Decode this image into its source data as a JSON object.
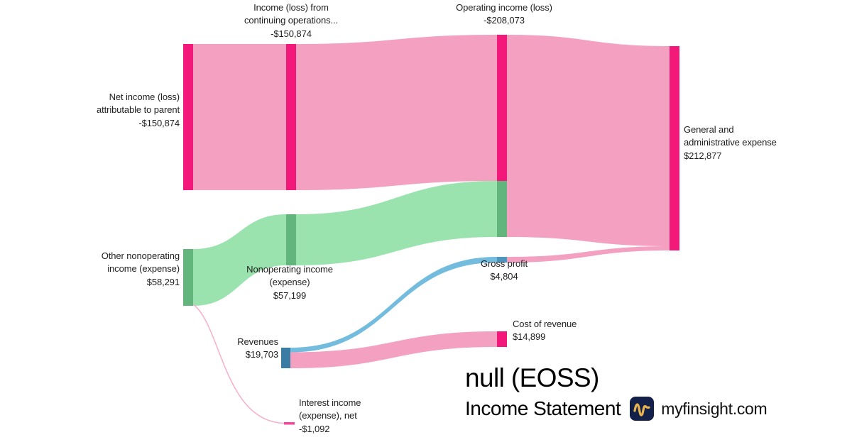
{
  "branding": {
    "title": "null (EOSS)",
    "subtitle": "Income Statement",
    "site": "myfinsight.com",
    "logo_icon": "pulse-waveform-icon",
    "logo_bg": "#13204A",
    "logo_fg": "#E9B44C"
  },
  "colors": {
    "background": "#FFFFFF",
    "label_text": "#1E1E1E",
    "node_pink": "#F2197B",
    "flow_pink": "#F3A0C1",
    "node_green": "#63B57E",
    "flow_green": "#9AE3AF",
    "node_blue": "#3A7CA3",
    "node_blue_light": "#4D95BD",
    "flow_blue": "#74BCDE",
    "node_hot_pink": "#F9449B",
    "flow_thin_pink": "#F8AECB"
  },
  "chart_data": {
    "type": "sankey",
    "title": "null (EOSS) Income Statement",
    "units": "USD",
    "nodes": {
      "net_income": {
        "name": "Net income (loss) attributable to parent",
        "value": -150874,
        "label": "Net income (loss)\nattributable to parent\n-$150,874",
        "color": "#F2197B"
      },
      "continuing_ops": {
        "name": "Income (loss) from continuing operations",
        "value": -150874,
        "label": "Income (loss) from\ncontinuing operations...\n-$150,874",
        "color": "#F2197B"
      },
      "operating_income": {
        "name": "Operating income (loss)",
        "value": -208073,
        "label": "Operating income (loss)\n-$208,073",
        "color": "#F2197B"
      },
      "other_nonoperating": {
        "name": "Other nonoperating income (expense)",
        "value": 58291,
        "label": "Other nonoperating\nincome (expense)\n$58,291",
        "color": "#63B57E"
      },
      "nonoperating": {
        "name": "Nonoperating income (expense)",
        "value": 57199,
        "label": "Nonoperating income\n(expense)\n$57,199",
        "color": "#63B57E"
      },
      "interest": {
        "name": "Interest income (expense), net",
        "value": -1092,
        "label": "Interest income\n(expense), net\n-$1,092",
        "color": "#F9449B"
      },
      "revenues": {
        "name": "Revenues",
        "value": 19703,
        "label": "Revenues\n$19,703",
        "color": "#3A7CA3"
      },
      "gross_profit": {
        "name": "Gross profit",
        "value": 4804,
        "label": "Gross profit\n$4,804",
        "color": "#4D95BD"
      },
      "cost_of_revenue": {
        "name": "Cost of revenue",
        "value": 14899,
        "label": "Cost of revenue\n$14,899",
        "color": "#F2197B"
      },
      "ga_expense": {
        "name": "General and administrative expense",
        "value": 212877,
        "label": "General and\nadministrative expense\n$212,877",
        "color": "#F2197B"
      }
    },
    "links": [
      {
        "source": "net_income",
        "target": "continuing_ops",
        "value": 150874,
        "color": "#F3A0C1"
      },
      {
        "source": "continuing_ops",
        "target": "operating_income",
        "value": 150874,
        "color": "#F3A0C1"
      },
      {
        "source": "other_nonoperating",
        "target": "nonoperating",
        "value": 57199,
        "color": "#9AE3AF"
      },
      {
        "source": "nonoperating",
        "target": "operating_income",
        "value": 57199,
        "color": "#9AE3AF"
      },
      {
        "source": "operating_income",
        "target": "ga_expense",
        "value": 208073,
        "color": "#F3A0C1"
      },
      {
        "source": "gross_profit",
        "target": "ga_expense",
        "value": 4804,
        "color": "#F3A0C1"
      },
      {
        "source": "revenues",
        "target": "gross_profit",
        "value": 4804,
        "color": "#74BCDE"
      },
      {
        "source": "revenues",
        "target": "cost_of_revenue",
        "value": 14899,
        "color": "#F3A0C1"
      },
      {
        "source": "other_nonoperating",
        "target": "interest",
        "value": 1092,
        "color": "#F8AECB"
      }
    ]
  }
}
